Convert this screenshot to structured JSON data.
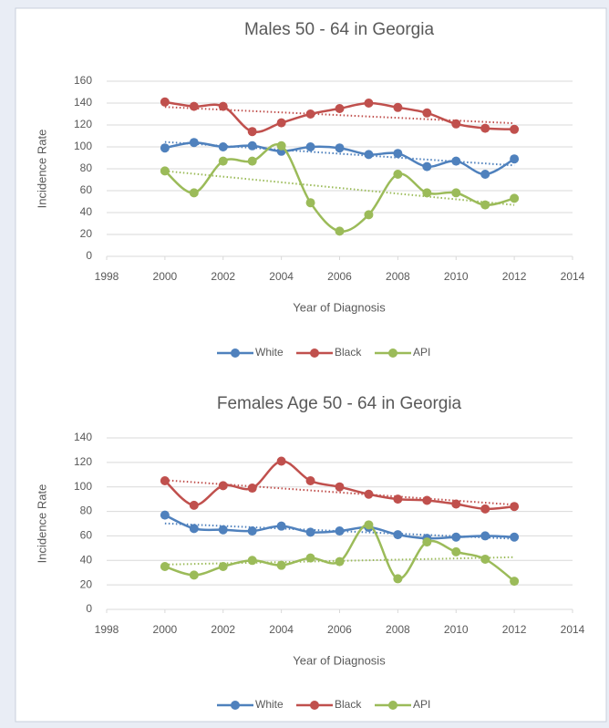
{
  "chart_data": [
    {
      "type": "line",
      "title": "Males 50 - 64 in Georgia",
      "xlabel": "Year of Diagnosis",
      "ylabel": "Incidence Rate",
      "x": [
        2000,
        2001,
        2002,
        2003,
        2004,
        2005,
        2006,
        2007,
        2008,
        2009,
        2010,
        2011,
        2012
      ],
      "xlim": [
        1998,
        2014
      ],
      "xticks": [
        1998,
        2000,
        2002,
        2004,
        2006,
        2008,
        2010,
        2012,
        2014
      ],
      "ylim": [
        0,
        160
      ],
      "yticks": [
        0,
        20,
        40,
        60,
        80,
        100,
        120,
        140,
        160
      ],
      "grid": true,
      "legend": "bottom",
      "trendline": true,
      "series": [
        {
          "name": "White",
          "color": "#4f81bd",
          "values": [
            99,
            104,
            100,
            101,
            96,
            100,
            99,
            93,
            94,
            82,
            87,
            75,
            89
          ]
        },
        {
          "name": "Black",
          "color": "#c0504d",
          "values": [
            141,
            137,
            137,
            114,
            122,
            130,
            135,
            140,
            136,
            131,
            121,
            117,
            116
          ]
        },
        {
          "name": "API",
          "color": "#9bbb59",
          "values": [
            78,
            58,
            87,
            87,
            101,
            49,
            23,
            38,
            75,
            58,
            58,
            47,
            53
          ]
        }
      ]
    },
    {
      "type": "line",
      "title": "Females Age 50 - 64 in Georgia",
      "xlabel": "Year of Diagnosis",
      "ylabel": "Incidence Rate",
      "x": [
        2000,
        2001,
        2002,
        2003,
        2004,
        2005,
        2006,
        2007,
        2008,
        2009,
        2010,
        2011,
        2012
      ],
      "xlim": [
        1998,
        2014
      ],
      "xticks": [
        1998,
        2000,
        2002,
        2004,
        2006,
        2008,
        2010,
        2012,
        2014
      ],
      "ylim": [
        0,
        140
      ],
      "yticks": [
        0,
        20,
        40,
        60,
        80,
        100,
        120,
        140
      ],
      "grid": true,
      "legend": "bottom",
      "trendline": true,
      "series": [
        {
          "name": "White",
          "color": "#4f81bd",
          "values": [
            77,
            66,
            65,
            64,
            68,
            63,
            64,
            67,
            61,
            58,
            59,
            60,
            59
          ]
        },
        {
          "name": "Black",
          "color": "#c0504d",
          "values": [
            105,
            85,
            101,
            99,
            121,
            105,
            100,
            94,
            90,
            89,
            86,
            82,
            84
          ]
        },
        {
          "name": "API",
          "color": "#9bbb59",
          "values": [
            35,
            28,
            35,
            40,
            36,
            42,
            39,
            69,
            25,
            55,
            47,
            41,
            23
          ]
        }
      ]
    }
  ]
}
